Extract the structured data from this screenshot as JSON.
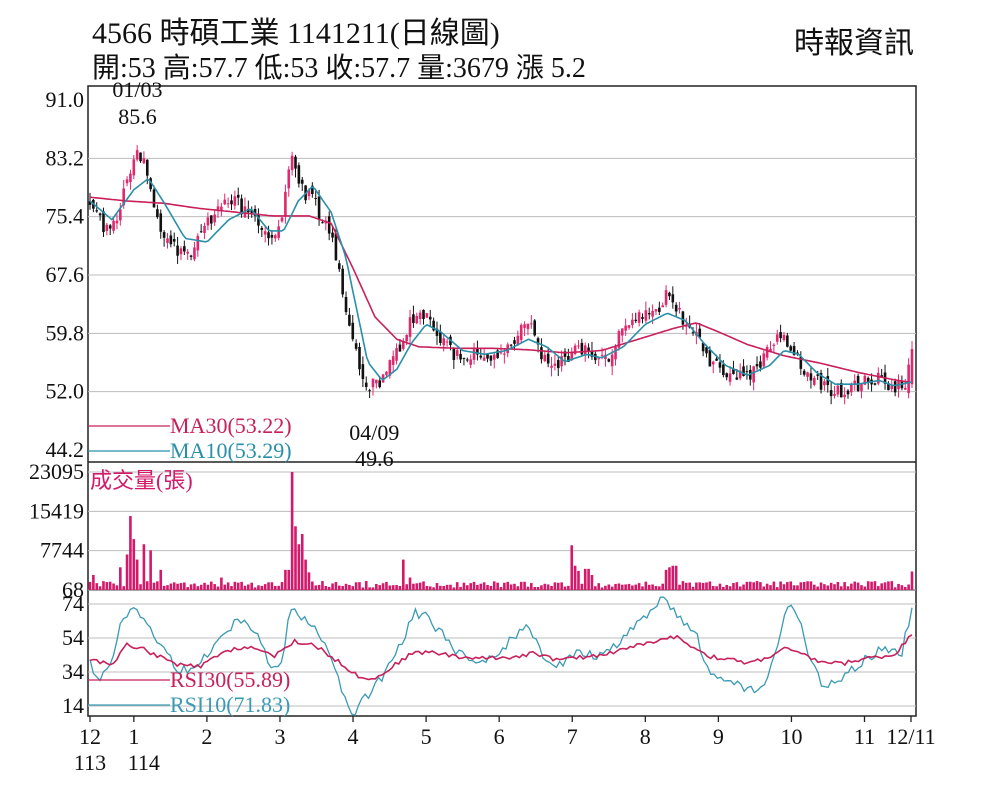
{
  "header": {
    "code": "4566",
    "company": "時碩工業",
    "date": "1141211",
    "chart_kind": "(日線圖)",
    "source": "時報資訊",
    "stats": [
      {
        "label": "開:",
        "value": "53"
      },
      {
        "label": "高:",
        "value": "57.7"
      },
      {
        "label": "低:",
        "value": "53"
      },
      {
        "label": "收:",
        "value": "57.7"
      },
      {
        "label": "量:",
        "value": "3679"
      },
      {
        "label": "漲",
        "value": "5.2"
      }
    ]
  },
  "colors": {
    "up": "#e0286e",
    "down": "#111111",
    "ma30": "#c8205a",
    "ma10": "#2a8fa8",
    "volume": "#d4186a",
    "rsi30": "#c8205a",
    "rsi10": "#3a9ab5",
    "grid": "#bcbcbc"
  },
  "chart_data": [
    {
      "type": "line",
      "subtype": "candlestick",
      "yticks": [
        "91.0",
        "83.2",
        "75.4",
        "67.6",
        "59.8",
        "52.0",
        "44.2"
      ],
      "ylim": [
        44.2,
        91.0
      ],
      "xticks": [
        "12",
        "1",
        "2",
        "3",
        "4",
        "5",
        "6",
        "7",
        "8",
        "9",
        "10",
        "11",
        "12/11"
      ],
      "xticks_sub": [
        "113",
        "114"
      ],
      "x_months": [
        0,
        0.6,
        1.6,
        2.6,
        3.6,
        4.6,
        5.6,
        6.6,
        7.6,
        8.6,
        9.6,
        10.6,
        11.6
      ],
      "keypoints": [
        [
          0.0,
          77.5
        ],
        [
          0.25,
          73.2
        ],
        [
          0.4,
          75.8
        ],
        [
          0.55,
          81.8
        ],
        [
          0.65,
          84.5
        ],
        [
          0.8,
          80.5
        ],
        [
          1.0,
          72.6
        ],
        [
          1.3,
          69.6
        ],
        [
          1.6,
          74.5
        ],
        [
          1.9,
          77.8
        ],
        [
          2.2,
          75.8
        ],
        [
          2.45,
          71.8
        ],
        [
          2.6,
          73.5
        ],
        [
          2.75,
          83.8
        ],
        [
          2.9,
          79.0
        ],
        [
          3.05,
          77.5
        ],
        [
          3.3,
          72.8
        ],
        [
          3.45,
          66.5
        ],
        [
          3.6,
          58.5
        ],
        [
          3.75,
          53.5
        ],
        [
          3.95,
          52.8
        ],
        [
          4.2,
          57.5
        ],
        [
          4.4,
          61.5
        ],
        [
          4.6,
          61.8
        ],
        [
          4.8,
          59.2
        ],
        [
          5.0,
          57.0
        ],
        [
          5.3,
          57.3
        ],
        [
          5.6,
          56.5
        ],
        [
          5.8,
          59.0
        ],
        [
          6.0,
          61.0
        ],
        [
          6.2,
          56.5
        ],
        [
          6.4,
          55.5
        ],
        [
          6.7,
          57.5
        ],
        [
          6.9,
          56.5
        ],
        [
          7.05,
          56.0
        ],
        [
          7.2,
          59.0
        ],
        [
          7.45,
          61.5
        ],
        [
          7.75,
          62.5
        ],
        [
          7.9,
          65.5
        ],
        [
          8.1,
          61.5
        ],
        [
          8.3,
          59.8
        ],
        [
          8.5,
          56.0
        ],
        [
          8.8,
          54.2
        ],
        [
          9.0,
          54.0
        ],
        [
          9.25,
          57.2
        ],
        [
          9.4,
          59.8
        ],
        [
          9.6,
          58.0
        ],
        [
          9.8,
          54.0
        ],
        [
          10.0,
          53.2
        ],
        [
          10.2,
          52.0
        ],
        [
          10.5,
          53.0
        ],
        [
          10.8,
          53.5
        ],
        [
          11.0,
          52.5
        ],
        [
          11.15,
          53.0
        ],
        [
          11.25,
          57.7
        ]
      ],
      "ma30_points": [
        [
          0.0,
          78.0
        ],
        [
          0.5,
          77.5
        ],
        [
          1.0,
          77.2
        ],
        [
          1.5,
          76.5
        ],
        [
          2.0,
          76.0
        ],
        [
          2.5,
          75.5
        ],
        [
          3.0,
          75.5
        ],
        [
          3.3,
          74.5
        ],
        [
          3.6,
          68.5
        ],
        [
          3.9,
          62.0
        ],
        [
          4.2,
          59.0
        ],
        [
          4.5,
          58.0
        ],
        [
          5.0,
          57.8
        ],
        [
          5.5,
          57.8
        ],
        [
          6.0,
          57.6
        ],
        [
          6.5,
          57.2
        ],
        [
          7.0,
          57.5
        ],
        [
          7.5,
          59.0
        ],
        [
          8.0,
          60.5
        ],
        [
          8.3,
          61.2
        ],
        [
          8.6,
          60.0
        ],
        [
          9.0,
          58.3
        ],
        [
          9.5,
          56.8
        ],
        [
          10.0,
          55.8
        ],
        [
          10.5,
          54.6
        ],
        [
          11.0,
          53.6
        ],
        [
          11.25,
          53.22
        ]
      ],
      "ma10_points": [
        [
          0.0,
          77.5
        ],
        [
          0.3,
          75.0
        ],
        [
          0.6,
          79.0
        ],
        [
          0.8,
          80.5
        ],
        [
          1.0,
          77.5
        ],
        [
          1.3,
          72.5
        ],
        [
          1.6,
          72.0
        ],
        [
          1.9,
          75.0
        ],
        [
          2.2,
          76.5
        ],
        [
          2.45,
          73.5
        ],
        [
          2.65,
          73.5
        ],
        [
          2.85,
          77.5
        ],
        [
          3.05,
          79.5
        ],
        [
          3.3,
          76.0
        ],
        [
          3.5,
          70.0
        ],
        [
          3.65,
          63.0
        ],
        [
          3.8,
          56.0
        ],
        [
          4.0,
          53.5
        ],
        [
          4.2,
          55.0
        ],
        [
          4.4,
          58.5
        ],
        [
          4.6,
          61.0
        ],
        [
          4.8,
          60.0
        ],
        [
          5.1,
          57.5
        ],
        [
          5.4,
          57.0
        ],
        [
          5.7,
          57.5
        ],
        [
          6.0,
          59.0
        ],
        [
          6.25,
          58.0
        ],
        [
          6.5,
          56.0
        ],
        [
          6.8,
          57.0
        ],
        [
          7.0,
          56.5
        ],
        [
          7.3,
          58.0
        ],
        [
          7.6,
          61.0
        ],
        [
          7.9,
          62.5
        ],
        [
          8.15,
          61.5
        ],
        [
          8.4,
          58.5
        ],
        [
          8.7,
          55.5
        ],
        [
          9.0,
          54.2
        ],
        [
          9.3,
          55.5
        ],
        [
          9.5,
          57.5
        ],
        [
          9.7,
          57.0
        ],
        [
          9.95,
          54.5
        ],
        [
          10.2,
          53.0
        ],
        [
          10.5,
          53.0
        ],
        [
          10.8,
          53.5
        ],
        [
          11.0,
          52.8
        ],
        [
          11.25,
          53.29
        ]
      ],
      "annotations": [
        {
          "date": "01/03",
          "value": "85.6",
          "x": 0.65,
          "y": 85.6
        },
        {
          "date": "04/09",
          "value": "49.6",
          "x": 3.7,
          "y": 49.6
        }
      ],
      "legend": [
        {
          "name": "MA30(53.22)",
          "color": "#c8205a"
        },
        {
          "name": "MA10(53.29)",
          "color": "#2a8fa8"
        }
      ]
    },
    {
      "type": "bar",
      "title": "成交量(張)",
      "yticks": [
        "23095",
        "15419",
        "7744",
        "68"
      ],
      "ylim": [
        68,
        23095
      ],
      "typical_volume": 1400,
      "spikes": [
        [
          0.05,
          3000
        ],
        [
          0.4,
          4500
        ],
        [
          0.5,
          7000
        ],
        [
          0.55,
          14500
        ],
        [
          0.6,
          10000
        ],
        [
          0.65,
          6000
        ],
        [
          0.75,
          9000
        ],
        [
          0.85,
          7800
        ],
        [
          0.95,
          4000
        ],
        [
          1.8,
          2500
        ],
        [
          2.7,
          4000
        ],
        [
          2.75,
          23095
        ],
        [
          2.8,
          12500
        ],
        [
          2.85,
          9000
        ],
        [
          2.9,
          11000
        ],
        [
          2.95,
          6000
        ],
        [
          3.0,
          3500
        ],
        [
          4.3,
          6000
        ],
        [
          4.4,
          2500
        ],
        [
          6.6,
          8800
        ],
        [
          6.65,
          4800
        ],
        [
          6.7,
          3800
        ],
        [
          6.8,
          4200
        ],
        [
          6.85,
          3000
        ],
        [
          7.9,
          4000
        ],
        [
          7.95,
          4500
        ],
        [
          8.0,
          4800
        ],
        [
          11.25,
          3679
        ]
      ]
    },
    {
      "type": "line",
      "title": "RSI",
      "yticks": [
        "74",
        "54",
        "34",
        "14"
      ],
      "ylim": [
        4,
        78
      ],
      "rsi30_points": [
        [
          0.0,
          42
        ],
        [
          0.3,
          38
        ],
        [
          0.5,
          50
        ],
        [
          0.7,
          48
        ],
        [
          0.9,
          44
        ],
        [
          1.2,
          38
        ],
        [
          1.5,
          37
        ],
        [
          1.9,
          47
        ],
        [
          2.2,
          49
        ],
        [
          2.5,
          43
        ],
        [
          2.8,
          52
        ],
        [
          3.1,
          49
        ],
        [
          3.4,
          40
        ],
        [
          3.65,
          32
        ],
        [
          3.9,
          30
        ],
        [
          4.1,
          36
        ],
        [
          4.4,
          45
        ],
        [
          4.7,
          46
        ],
        [
          5.0,
          43
        ],
        [
          5.4,
          42
        ],
        [
          5.8,
          43
        ],
        [
          6.1,
          45
        ],
        [
          6.4,
          41
        ],
        [
          6.8,
          43
        ],
        [
          7.1,
          45
        ],
        [
          7.4,
          49
        ],
        [
          7.8,
          52
        ],
        [
          8.0,
          55
        ],
        [
          8.2,
          50
        ],
        [
          8.5,
          43
        ],
        [
          8.8,
          41
        ],
        [
          9.0,
          39
        ],
        [
          9.3,
          43
        ],
        [
          9.5,
          48
        ],
        [
          9.7,
          45
        ],
        [
          10.0,
          40
        ],
        [
          10.3,
          39
        ],
        [
          10.6,
          42
        ],
        [
          11.0,
          44
        ],
        [
          11.25,
          55.89
        ]
      ],
      "rsi10_points": [
        [
          0.0,
          42
        ],
        [
          0.1,
          28
        ],
        [
          0.25,
          35
        ],
        [
          0.45,
          65
        ],
        [
          0.6,
          74
        ],
        [
          0.8,
          60
        ],
        [
          1.0,
          48
        ],
        [
          1.2,
          36
        ],
        [
          1.4,
          34
        ],
        [
          1.6,
          45
        ],
        [
          1.9,
          60
        ],
        [
          2.1,
          66
        ],
        [
          2.3,
          57
        ],
        [
          2.45,
          38
        ],
        [
          2.6,
          35
        ],
        [
          2.75,
          72
        ],
        [
          2.9,
          67
        ],
        [
          3.1,
          60
        ],
        [
          3.3,
          42
        ],
        [
          3.45,
          22
        ],
        [
          3.6,
          8
        ],
        [
          3.75,
          18
        ],
        [
          3.95,
          28
        ],
        [
          4.2,
          45
        ],
        [
          4.45,
          69
        ],
        [
          4.6,
          66
        ],
        [
          4.8,
          58
        ],
        [
          5.0,
          45
        ],
        [
          5.3,
          40
        ],
        [
          5.6,
          46
        ],
        [
          5.8,
          55
        ],
        [
          6.0,
          60
        ],
        [
          6.2,
          45
        ],
        [
          6.4,
          38
        ],
        [
          6.7,
          46
        ],
        [
          6.9,
          44
        ],
        [
          7.1,
          45
        ],
        [
          7.3,
          55
        ],
        [
          7.5,
          65
        ],
        [
          7.7,
          68
        ],
        [
          7.8,
          78
        ],
        [
          7.95,
          73
        ],
        [
          8.1,
          66
        ],
        [
          8.3,
          55
        ],
        [
          8.45,
          38
        ],
        [
          8.6,
          30
        ],
        [
          8.8,
          29
        ],
        [
          9.0,
          22
        ],
        [
          9.2,
          25
        ],
        [
          9.35,
          38
        ],
        [
          9.55,
          75
        ],
        [
          9.7,
          65
        ],
        [
          9.85,
          42
        ],
        [
          10.05,
          25
        ],
        [
          10.3,
          30
        ],
        [
          10.6,
          42
        ],
        [
          10.9,
          48
        ],
        [
          11.1,
          44
        ],
        [
          11.25,
          71.83
        ]
      ],
      "legend": [
        {
          "name": "RSI30(55.89)",
          "color": "#c8205a"
        },
        {
          "name": "RSI10(71.83)",
          "color": "#3a9ab5"
        }
      ]
    }
  ]
}
